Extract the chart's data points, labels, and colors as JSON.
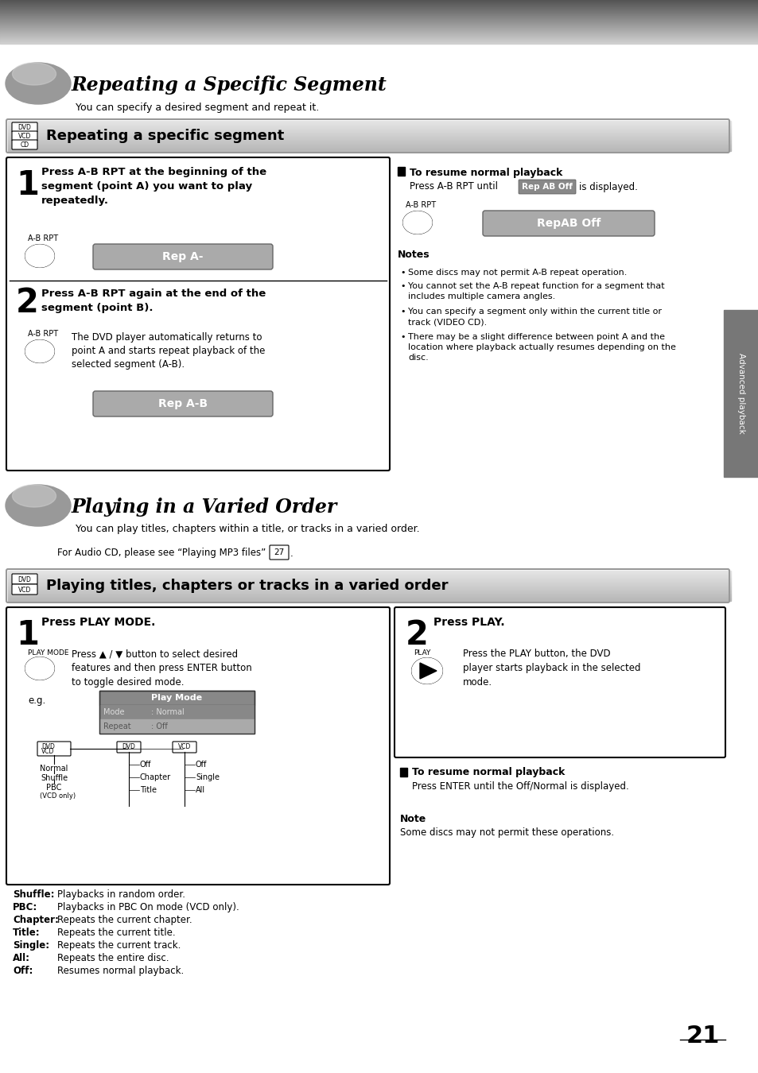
{
  "bg_color": "#ffffff",
  "page_number": "21",
  "section1_title": "Repeating a Specific Segment",
  "section1_subtitle": "You can specify a desired segment and repeat it.",
  "section1_box_title": "Repeating a specific segment",
  "step1_text": "Press A-B RPT at the beginning of the\nsegment (point A) you want to play\nrepeatedly.",
  "step1_label": "A-B RPT",
  "step1_button": "Rep A-",
  "step2_text": "Press A-B RPT again at the end of the\nsegment (point B).",
  "step2_label": "A-B RPT",
  "step2_desc": "The DVD player automatically returns to\npoint A and starts repeat playback of the\nselected segment (A-B).",
  "step2_button": "Rep A-B",
  "resume_title": "To resume normal playback",
  "resume_text1": "Press A-B RPT until",
  "resume_highlight": "Rep AB Off",
  "resume_text2": "is displayed.",
  "resume_label": "A-B RPT",
  "resume_button": "RepAB Off",
  "notes_title": "Notes",
  "notes": [
    "Some discs may not permit A-B repeat operation.",
    "You cannot set the A-B repeat function for a segment that\nincludes multiple camera angles.",
    "You can specify a segment only within the current title or\ntrack (VIDEO CD).",
    "There may be a slight difference between point A and the\nlocation where playback actually resumes depending on the\ndisc."
  ],
  "section2_title": "Playing in a Varied Order",
  "section2_subtitle": "You can play titles, chapters within a title, or tracks in a varied order.",
  "section2_note": "For Audio CD, please see “Playing MP3 files”",
  "section2_note_num": "27",
  "section2_box_title": "Playing titles, chapters or tracks in a varied order",
  "play_step1_text": "Press PLAY MODE.",
  "play_step1_label": "PLAY MODE",
  "play_step1_desc": "Press ▲ / ▼ button to select desired\nfeatures and then press ENTER button\nto toggle desired mode.",
  "play_eg": "e.g.",
  "play_mode_title": "Play Mode",
  "play_step2_text": "Press PLAY.",
  "play_step2_label": "PLAY",
  "play_step2_desc": "Press the PLAY button, the DVD\nplayer starts playback in the selected\nmode.",
  "play_resume_title": "To resume normal playback",
  "play_resume_desc": "Press ENTER until the Off/Normal is displayed.",
  "play_note_title": "Note",
  "play_note_desc": "Some discs may not permit these operations.",
  "shuffle_label": "Shuffle:",
  "shuffle_desc": "Playbacks in random order.",
  "pbc_label": "PBC:",
  "pbc_desc": "Playbacks in PBC On mode (VCD only).",
  "chapter_label": "Chapter:",
  "chapter_desc": "Repeats the current chapter.",
  "title_label": "Title:",
  "title_desc": "Repeats the current title.",
  "single_label": "Single:",
  "single_desc": "Repeats the current track.",
  "all_label": "All:",
  "all_desc": "Repeats the entire disc.",
  "off_label": "Off:",
  "off_desc": "Resumes normal playback.",
  "sidebar_text": "Advanced playback"
}
